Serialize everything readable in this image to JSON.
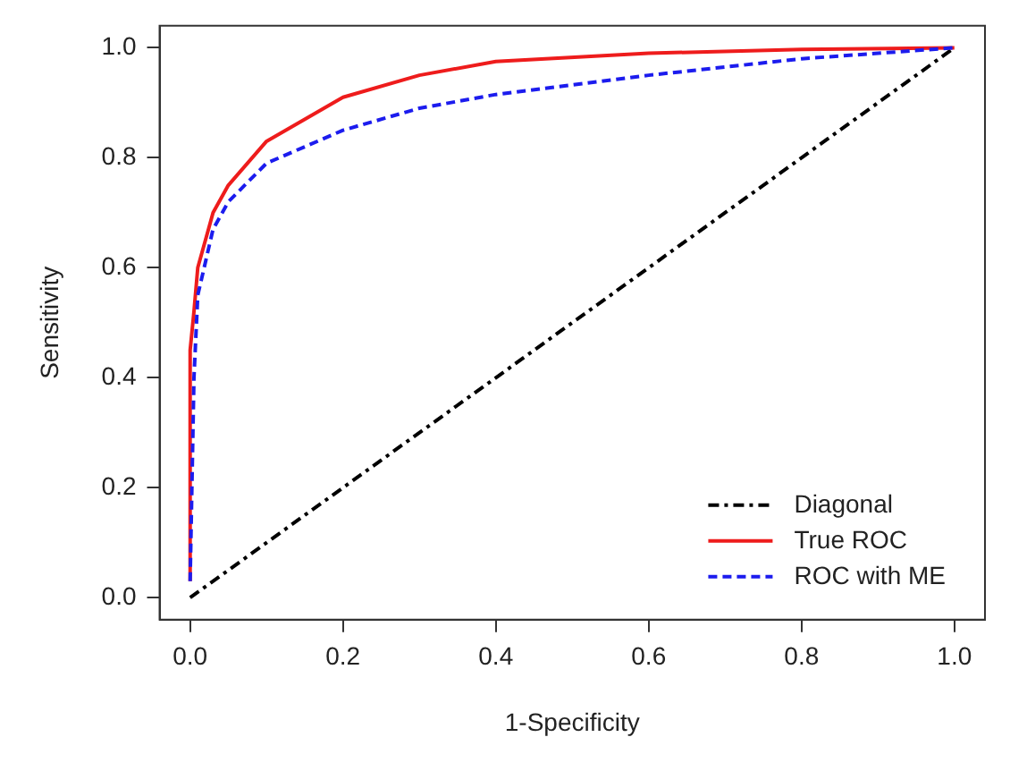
{
  "chart_data": {
    "type": "line",
    "xlabel": "1-Specificity",
    "ylabel": "Sensitivity",
    "xlim": [
      -0.04,
      1.04
    ],
    "ylim": [
      -0.04,
      1.04
    ],
    "xticks": [
      {
        "value": 0,
        "label": "0.0"
      },
      {
        "value": 0.2,
        "label": "0.2"
      },
      {
        "value": 0.4,
        "label": "0.4"
      },
      {
        "value": 0.6,
        "label": "0.6"
      },
      {
        "value": 0.8,
        "label": "0.8"
      },
      {
        "value": 1,
        "label": "1.0"
      }
    ],
    "yticks": [
      {
        "value": 0,
        "label": "0.0"
      },
      {
        "value": 0.2,
        "label": "0.2"
      },
      {
        "value": 0.4,
        "label": "0.4"
      },
      {
        "value": 0.6,
        "label": "0.6"
      },
      {
        "value": 0.8,
        "label": "0.8"
      },
      {
        "value": 1,
        "label": "1.0"
      }
    ],
    "grid": false,
    "legend": "bottom right",
    "marker": "none",
    "series": [
      {
        "name": "Diagonal",
        "color": "#000000",
        "line_style": "dotted",
        "x": [
          0,
          1
        ],
        "values": [
          0,
          1
        ]
      },
      {
        "name": "True ROC",
        "color": "#ee1c1c",
        "line_style": "solid",
        "x": [
          0,
          0,
          0.005,
          0.01,
          0.03,
          0.05,
          0.1,
          0.2,
          0.3,
          0.4,
          0.6,
          0.8,
          1
        ],
        "values": [
          0.03,
          0.45,
          0.52,
          0.6,
          0.7,
          0.75,
          0.83,
          0.91,
          0.95,
          0.975,
          0.99,
          0.997,
          1
        ]
      },
      {
        "name": "ROC with ME",
        "color": "#1c1cee",
        "line_style": "dashed",
        "x": [
          0,
          0.005,
          0.01,
          0.03,
          0.05,
          0.1,
          0.2,
          0.3,
          0.4,
          0.6,
          0.8,
          1
        ],
        "values": [
          0.03,
          0.4,
          0.55,
          0.67,
          0.72,
          0.79,
          0.85,
          0.89,
          0.915,
          0.95,
          0.98,
          1
        ]
      }
    ]
  }
}
